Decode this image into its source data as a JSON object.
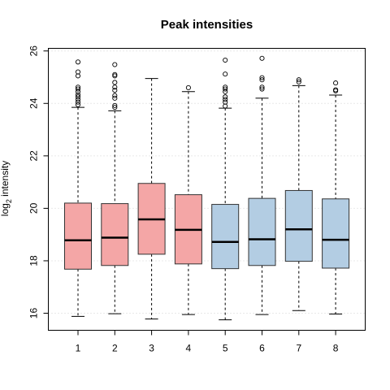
{
  "chart_data": {
    "type": "boxplot",
    "title": "Peak intensities",
    "xlabel": "",
    "ylabel": {
      "base": "log",
      "sub": "2",
      "rest": " intensity"
    },
    "ylim": [
      15.35,
      26.1
    ],
    "y_ticks": [
      16,
      18,
      20,
      22,
      24,
      26
    ],
    "grid": true,
    "categories": [
      "1",
      "2",
      "3",
      "4",
      "5",
      "6",
      "7",
      "8"
    ],
    "colors": {
      "group_a": "#F4A6A6",
      "group_b": "#B3CDE3",
      "grid": "#d3d3d3"
    },
    "boxes": [
      {
        "x": "1",
        "group": "a",
        "whisker_low": 15.88,
        "q1": 17.68,
        "median": 18.78,
        "q3": 20.2,
        "whisker_high": 23.85,
        "outliers": [
          23.95,
          24.05,
          24.15,
          24.25,
          24.33,
          24.45,
          24.55,
          24.62,
          25.05,
          25.2,
          25.58
        ]
      },
      {
        "x": "2",
        "group": "a",
        "whisker_low": 15.98,
        "q1": 17.82,
        "median": 18.88,
        "q3": 20.18,
        "whisker_high": 23.72,
        "outliers": [
          23.85,
          23.92,
          24.2,
          24.3,
          24.5,
          24.62,
          24.8,
          25.05,
          25.1,
          25.48
        ]
      },
      {
        "x": "3",
        "group": "a",
        "whisker_low": 15.78,
        "q1": 18.25,
        "median": 19.58,
        "q3": 20.95,
        "whisker_high": 24.95,
        "outliers": []
      },
      {
        "x": "4",
        "group": "a",
        "whisker_low": 15.95,
        "q1": 17.88,
        "median": 19.18,
        "q3": 20.52,
        "whisker_high": 24.45,
        "outliers": [
          24.6
        ]
      },
      {
        "x": "5",
        "group": "b",
        "whisker_low": 15.75,
        "q1": 17.7,
        "median": 18.72,
        "q3": 20.15,
        "whisker_high": 23.82,
        "outliers": [
          23.9,
          24.05,
          24.15,
          24.25,
          24.45,
          24.55,
          24.62,
          25.12,
          25.65
        ]
      },
      {
        "x": "6",
        "group": "b",
        "whisker_low": 15.95,
        "q1": 17.82,
        "median": 18.82,
        "q3": 20.38,
        "whisker_high": 24.2,
        "outliers": [
          24.55,
          24.62,
          24.9,
          24.98,
          25.72
        ]
      },
      {
        "x": "7",
        "group": "b",
        "whisker_low": 16.1,
        "q1": 17.98,
        "median": 19.2,
        "q3": 20.68,
        "whisker_high": 24.68,
        "outliers": [
          24.82,
          24.9
        ]
      },
      {
        "x": "8",
        "group": "b",
        "whisker_low": 15.97,
        "q1": 17.72,
        "median": 18.8,
        "q3": 20.36,
        "whisker_high": 24.32,
        "outliers": [
          24.48,
          24.52,
          24.78
        ]
      }
    ]
  }
}
